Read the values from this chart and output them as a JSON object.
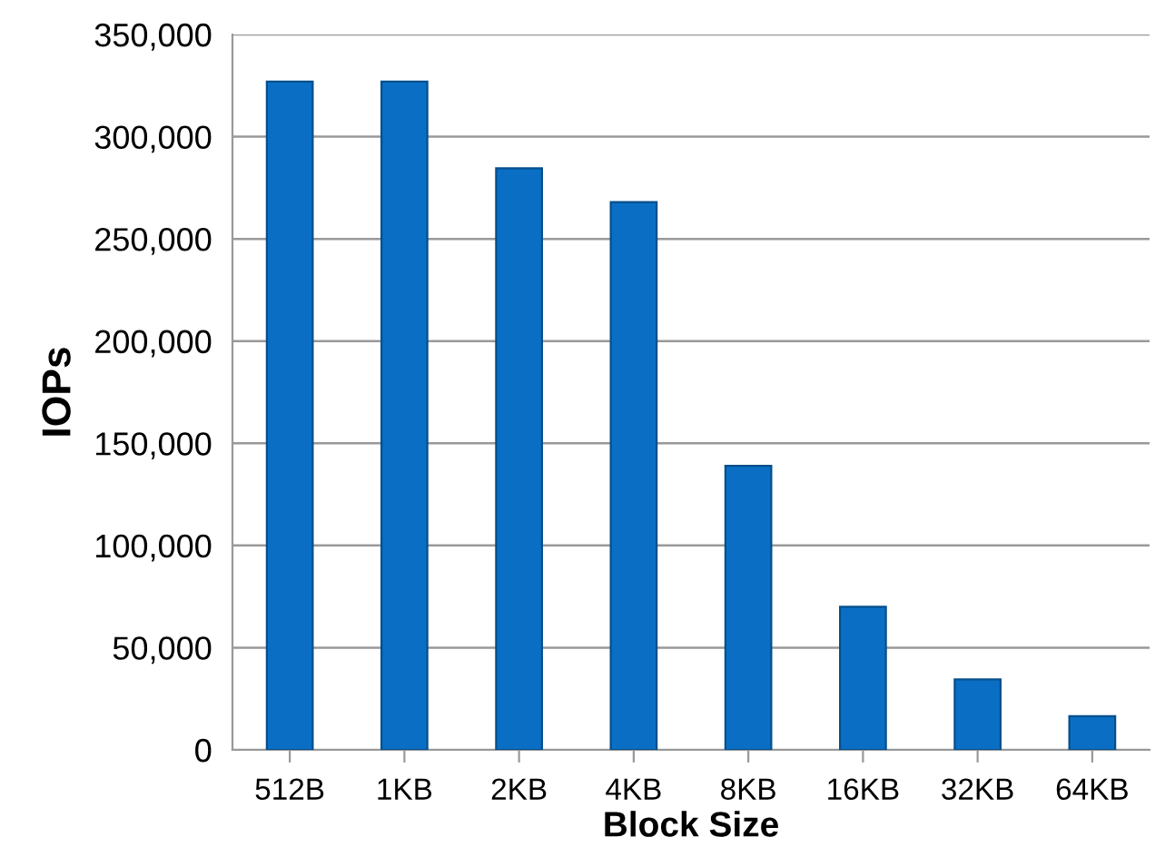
{
  "chart_data": {
    "type": "bar",
    "xlabel": "Block Size",
    "ylabel": "IOPs",
    "categories": [
      "512B",
      "1KB",
      "2KB",
      "4KB",
      "8KB",
      "16KB",
      "32KB",
      "64KB"
    ],
    "values": [
      327000,
      327000,
      284500,
      268000,
      139000,
      70000,
      34500,
      16500
    ],
    "color": "#0a6fc4",
    "ylim": [
      0,
      350000
    ],
    "yticks": [
      {
        "value": 0,
        "label": "0"
      },
      {
        "value": 50000,
        "label": "50,000"
      },
      {
        "value": 100000,
        "label": "100,000"
      },
      {
        "value": 150000,
        "label": "150,000"
      },
      {
        "value": 200000,
        "label": "200,000"
      },
      {
        "value": 250000,
        "label": "250,000"
      },
      {
        "value": 300000,
        "label": "300,000"
      },
      {
        "value": 350000,
        "label": "350,000"
      }
    ],
    "grid": "y"
  }
}
